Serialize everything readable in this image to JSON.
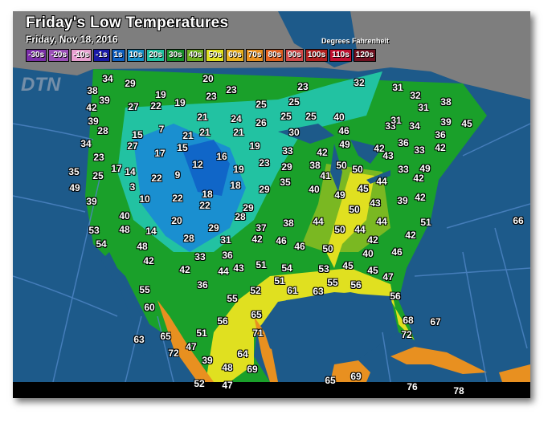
{
  "title": "Friday's Low Temperatures",
  "subtitle": "Friday, Nov 18, 2016",
  "units": "Degrees Fahrenheit",
  "logo": "DTN",
  "legend": [
    {
      "label": "-30s",
      "color": "#7b2fa8"
    },
    {
      "label": "-20s",
      "color": "#9b4fb8"
    },
    {
      "label": "-10s",
      "color": "#e8a0d0"
    },
    {
      "label": "-1s",
      "color": "#1a1aa8"
    },
    {
      "label": "1s",
      "color": "#1060c0"
    },
    {
      "label": "10s",
      "color": "#1890c8"
    },
    {
      "label": "20s",
      "color": "#20c0a0"
    },
    {
      "label": "30s",
      "color": "#18902a"
    },
    {
      "label": "40s",
      "color": "#70b020"
    },
    {
      "label": "50s",
      "color": "#e0e020"
    },
    {
      "label": "60s",
      "color": "#e8b020"
    },
    {
      "label": "70s",
      "color": "#e89020"
    },
    {
      "label": "80s",
      "color": "#e06020"
    },
    {
      "label": "90s",
      "color": "#d04848"
    },
    {
      "label": "100s",
      "color": "#b02020"
    },
    {
      "label": "110s",
      "color": "#c01030"
    },
    {
      "label": "120s",
      "color": "#701020"
    }
  ],
  "temps": [
    "34",
    "29",
    "20",
    "23",
    "23",
    "38",
    "39",
    "42",
    "27",
    "22",
    "19",
    "19",
    "25",
    "23",
    "25",
    "32",
    "31",
    "32",
    "31",
    "38",
    "39",
    "28",
    "15",
    "7",
    "21",
    "21",
    "21",
    "24",
    "26",
    "21",
    "25",
    "25",
    "40",
    "33",
    "31",
    "34",
    "39",
    "45",
    "46",
    "30",
    "36",
    "34",
    "27",
    "17",
    "15",
    "16",
    "19",
    "49",
    "42",
    "33",
    "42",
    "43",
    "33",
    "36",
    "42",
    "23",
    "35",
    "25",
    "17",
    "14",
    "12",
    "19",
    "23",
    "29",
    "38",
    "41",
    "50",
    "50",
    "33",
    "49",
    "49",
    "3",
    "22",
    "9",
    "18",
    "29",
    "35",
    "40",
    "45",
    "44",
    "42",
    "42",
    "39",
    "43",
    "49",
    "39",
    "10",
    "22",
    "18",
    "22",
    "29",
    "28",
    "50",
    "44",
    "51",
    "66",
    "40",
    "48",
    "14",
    "20",
    "29",
    "37",
    "38",
    "44",
    "50",
    "44",
    "53",
    "54",
    "48",
    "28",
    "31",
    "42",
    "46",
    "46",
    "50",
    "42",
    "42",
    "40",
    "46",
    "42",
    "33",
    "36",
    "42",
    "44",
    "43",
    "51",
    "54",
    "53",
    "45",
    "45",
    "47",
    "36",
    "51",
    "52",
    "61",
    "63",
    "55",
    "56",
    "55",
    "56",
    "60",
    "55",
    "65",
    "68",
    "67",
    "56",
    "63",
    "65",
    "51",
    "71",
    "72",
    "72",
    "47",
    "39",
    "64",
    "48",
    "69",
    "52",
    "47",
    "65",
    "69",
    "76",
    "78"
  ]
}
